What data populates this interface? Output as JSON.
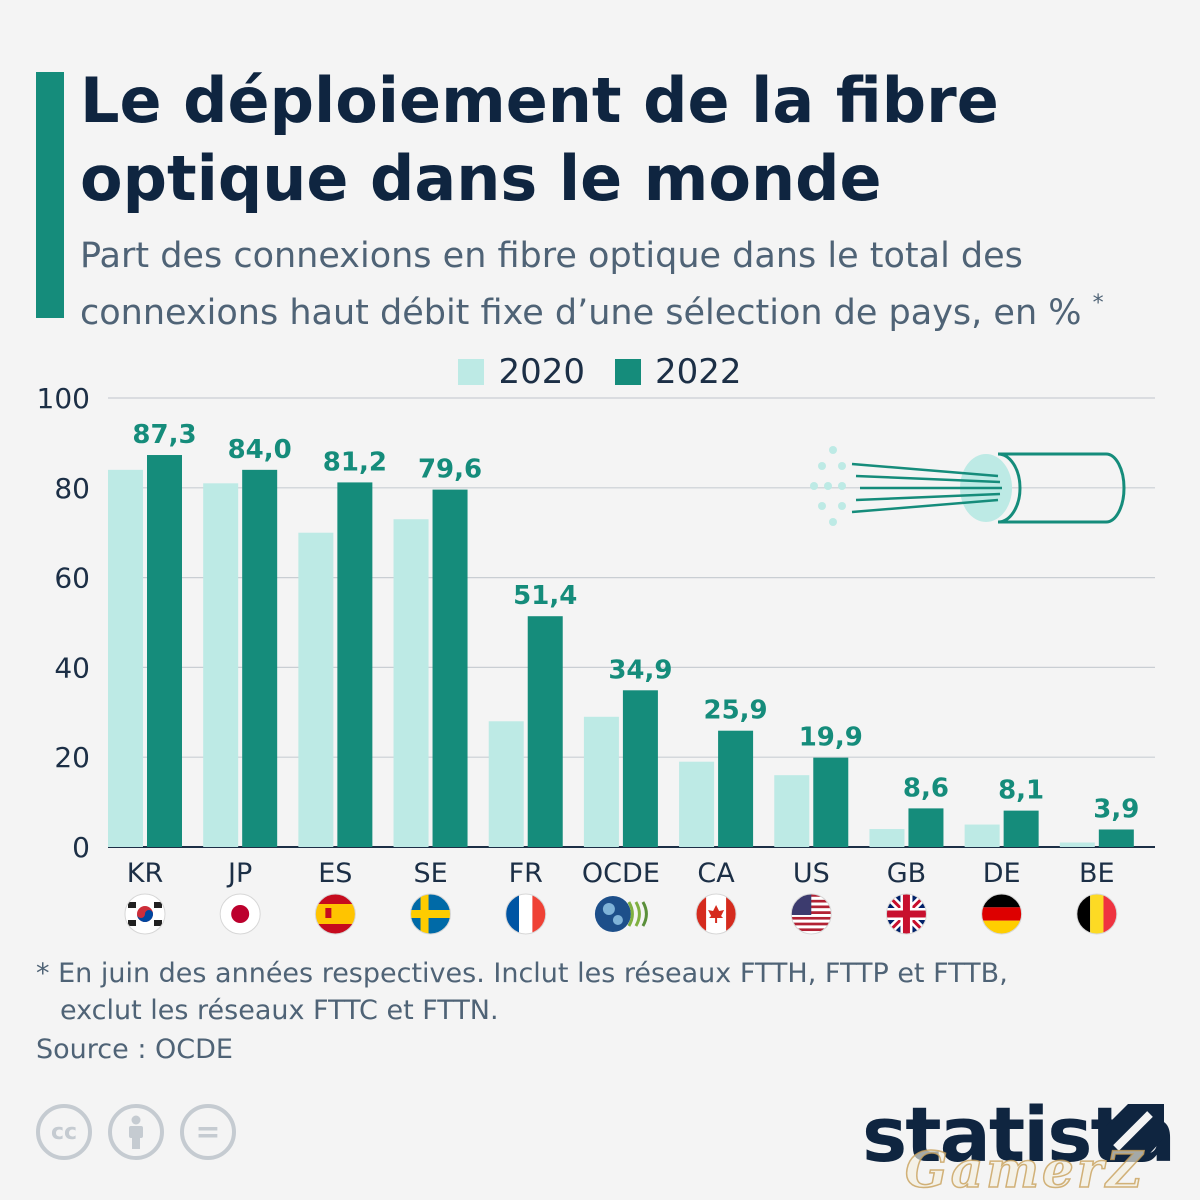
{
  "header": {
    "title": "Le déploiement de la fibre optique dans le monde",
    "subtitle": "Part des connexions en fibre optique dans le total des connexions haut débit fixe d’une sélection de pays, en %",
    "subtitle_mark": "*"
  },
  "legend": {
    "series_2020": "2020",
    "series_2022": "2022"
  },
  "colors": {
    "series_2020": "#bdeae5",
    "series_2022": "#158c7b",
    "accent": "#158c7b",
    "title": "#0f2540"
  },
  "chart_data": {
    "type": "bar",
    "categories": [
      "KR",
      "JP",
      "ES",
      "SE",
      "FR",
      "OCDE",
      "CA",
      "US",
      "GB",
      "DE",
      "BE"
    ],
    "series": [
      {
        "name": "2020",
        "values": [
          84,
          81,
          70,
          73,
          28,
          29,
          19,
          16,
          4,
          5,
          1
        ]
      },
      {
        "name": "2022",
        "values": [
          87.3,
          84.0,
          81.2,
          79.6,
          51.4,
          34.9,
          25.9,
          19.9,
          8.6,
          8.1,
          3.9
        ]
      }
    ],
    "data_labels_2022": [
      "87,3",
      "84,0",
      "81,2",
      "79,6",
      "51,4",
      "34,9",
      "25,9",
      "19,9",
      "8,6",
      "8,1",
      "3,9"
    ],
    "yticks": [
      0,
      20,
      40,
      60,
      80,
      100
    ],
    "ylim": [
      0,
      100
    ],
    "grid": true,
    "legend_position": "top-center",
    "flag_icons": [
      "kr-flag-icon",
      "jp-flag-icon",
      "es-flag-icon",
      "se-flag-icon",
      "fr-flag-icon",
      "oecd-logo-icon",
      "ca-flag-icon",
      "us-flag-icon",
      "gb-flag-icon",
      "de-flag-icon",
      "be-flag-icon"
    ]
  },
  "footnote": {
    "line1": "* En juin des années respectives. Inclut les réseaux FTTH, FTTP et FTTB,",
    "line2": "exclut les réseaux FTTC et FTTN."
  },
  "source": "Source : OCDE",
  "brand": "statista",
  "watermark": "GamerZ",
  "license_icons": [
    "cc-icon",
    "attribution-icon",
    "no-derivatives-icon"
  ],
  "license_text": {
    "cc": "cc",
    "nd": "="
  }
}
